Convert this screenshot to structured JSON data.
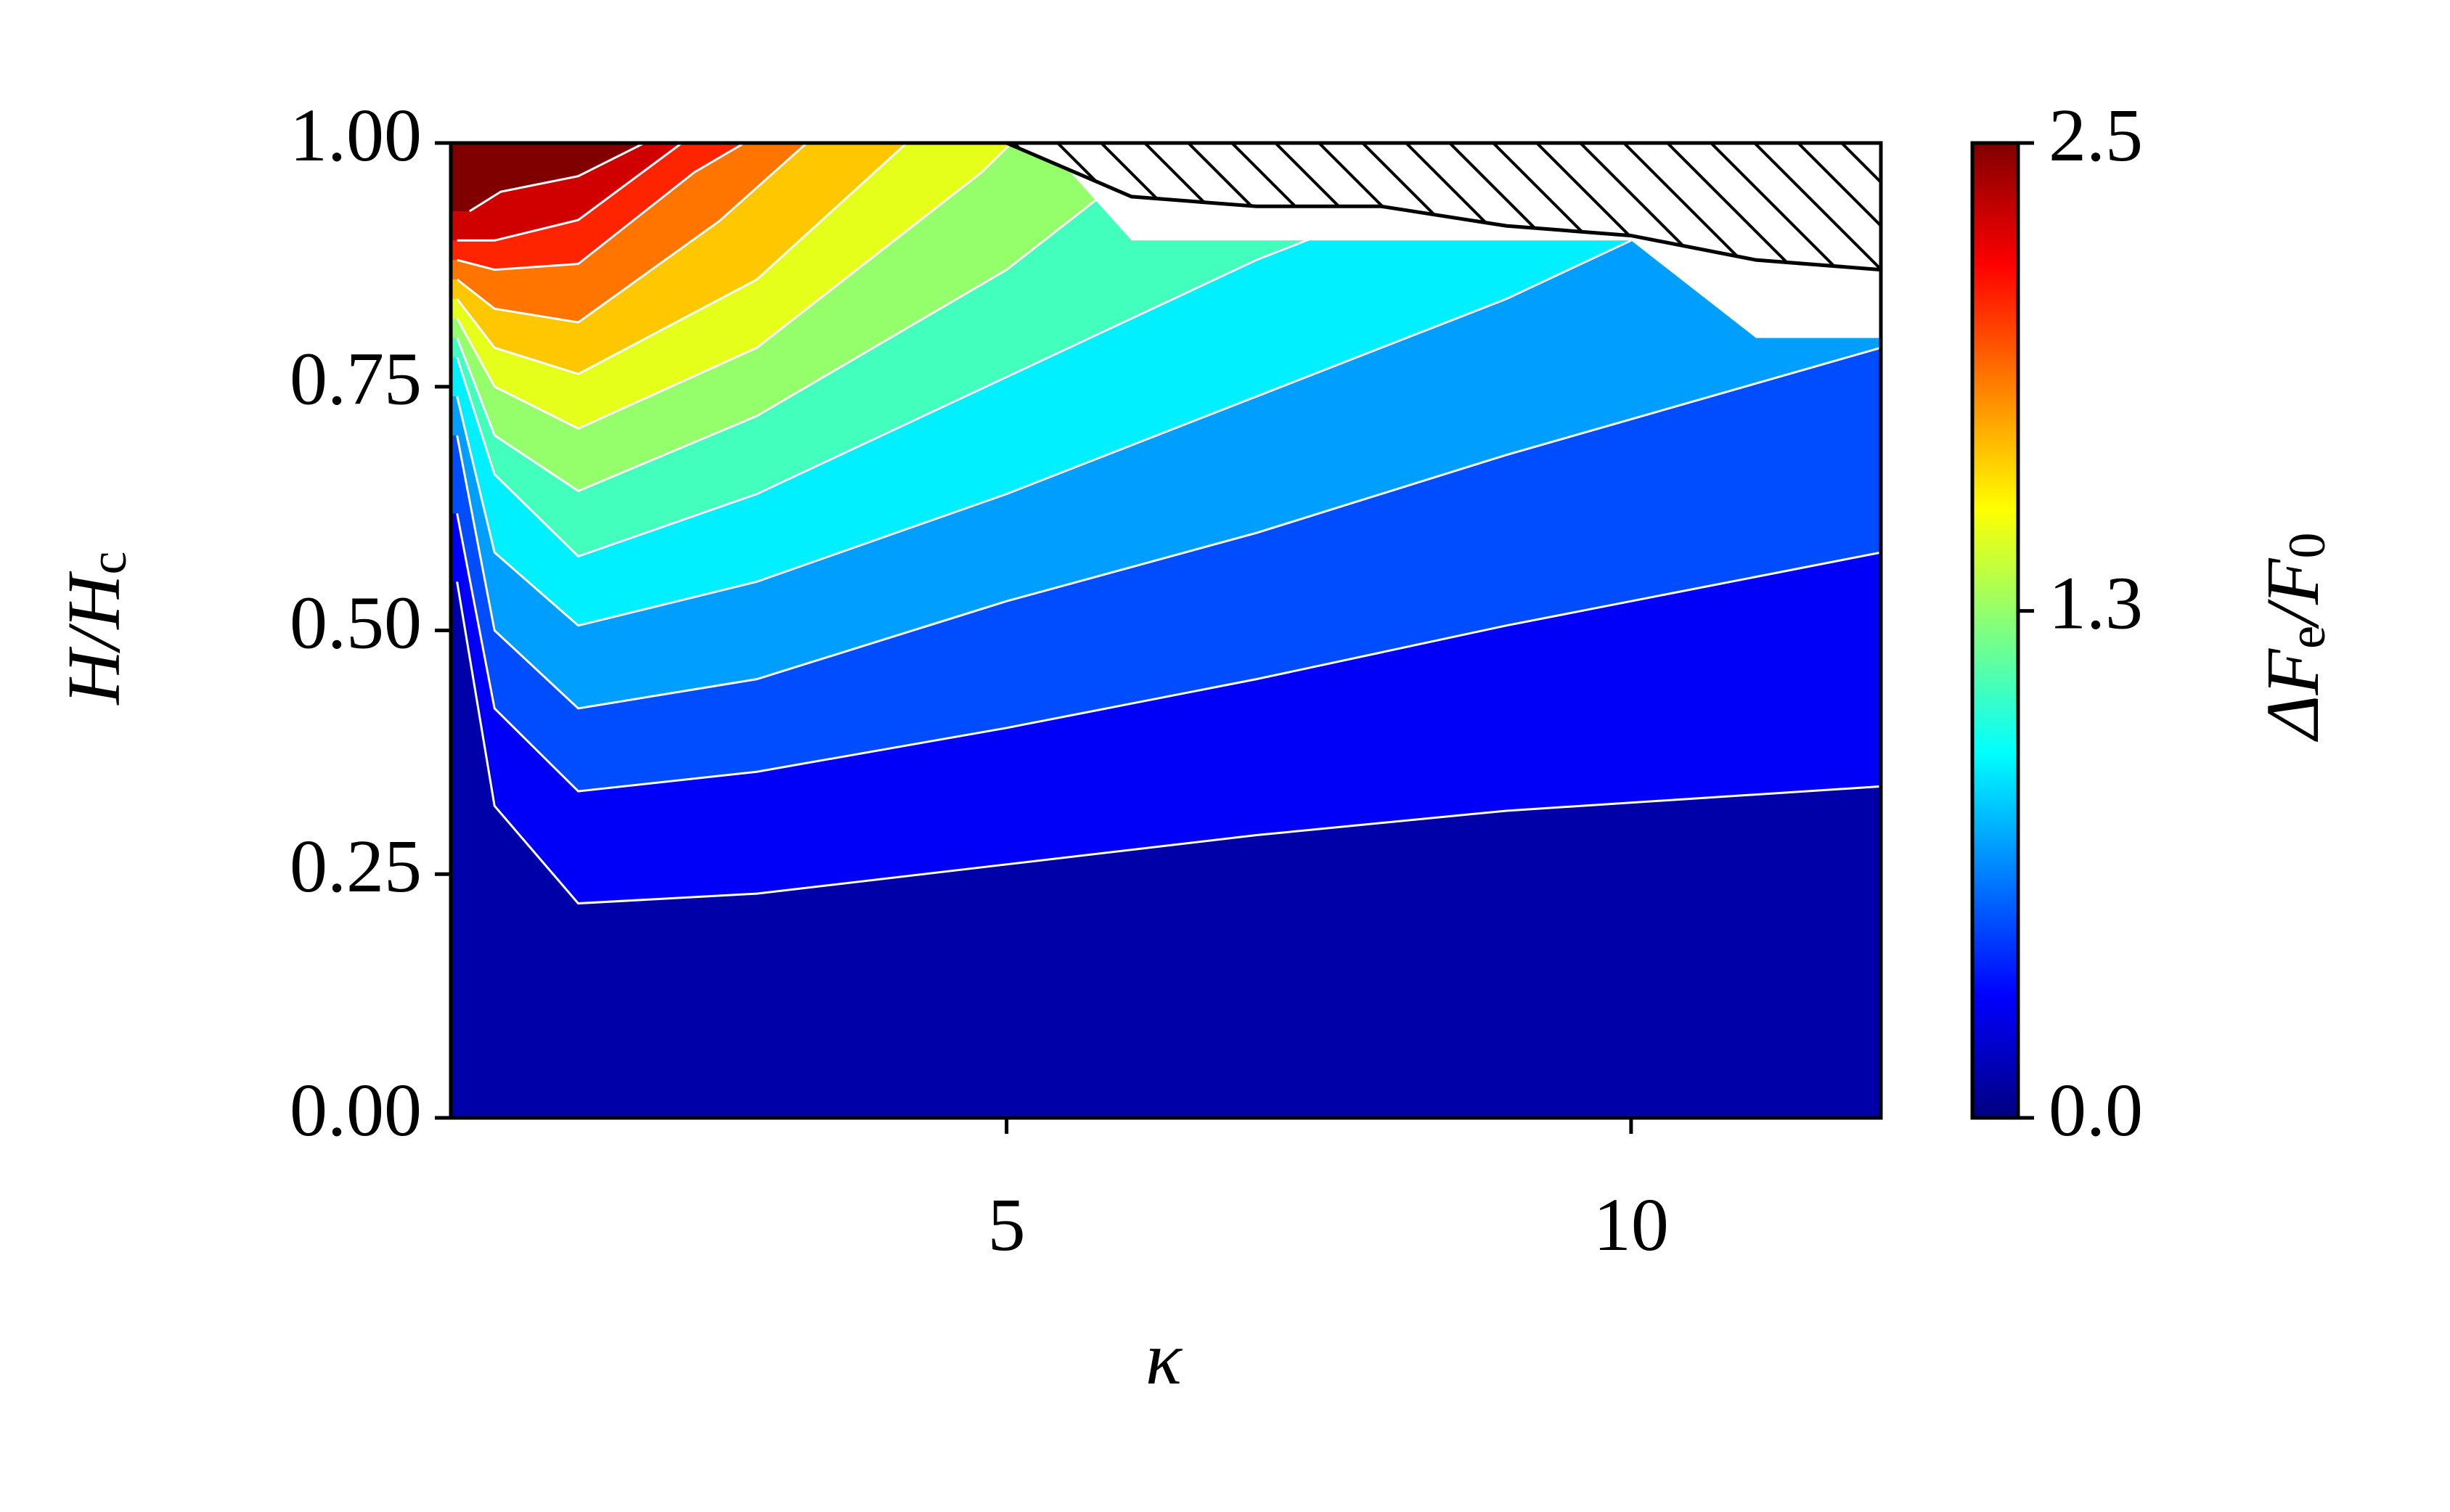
{
  "chart_data": {
    "type": "contour",
    "cmap": "jet",
    "xlabel": "κ",
    "ylabel_parts": [
      "H/H",
      "c"
    ],
    "colorbar_label_parts": [
      "ΔF",
      "e",
      "/F",
      "0"
    ],
    "xlim": [
      0.55,
      12
    ],
    "ylim": [
      0,
      1
    ],
    "xticks": [
      5,
      10
    ],
    "yticks": [
      {
        "value": 0,
        "label": "0.00"
      },
      {
        "value": 0.25,
        "label": "0.25"
      },
      {
        "value": 0.5,
        "label": "0.50"
      },
      {
        "value": 0.75,
        "label": "0.75"
      },
      {
        "value": 1,
        "label": "1.00"
      }
    ],
    "clim": [
      0,
      2.5
    ],
    "cticks": [
      {
        "value": 0,
        "label": "0.0"
      },
      {
        "value": 1.3,
        "label": "1.3"
      },
      {
        "value": 2.5,
        "label": "2.5"
      }
    ],
    "contours": [
      {
        "level": 0.2,
        "x": [
          0.6,
          0.9,
          1.57,
          3,
          5,
          7,
          9,
          12
        ],
        "y": [
          0.55,
          0.32,
          0.22,
          0.23,
          0.26,
          0.29,
          0.315,
          0.34
        ]
      },
      {
        "level": 0.4,
        "x": [
          0.6,
          0.9,
          1.57,
          3,
          5,
          7,
          9,
          12
        ],
        "y": [
          0.62,
          0.42,
          0.335,
          0.355,
          0.4,
          0.45,
          0.505,
          0.58
        ]
      },
      {
        "level": 0.6,
        "x": [
          0.6,
          0.9,
          1.57,
          3,
          5,
          7,
          9,
          12
        ],
        "y": [
          0.7,
          0.5,
          0.42,
          0.45,
          0.53,
          0.6,
          0.68,
          0.79
        ]
      },
      {
        "level": 0.8,
        "x": [
          0.6,
          0.9,
          1.57,
          3,
          5,
          7,
          9,
          10
        ],
        "y": [
          0.74,
          0.58,
          0.505,
          0.55,
          0.64,
          0.74,
          0.84,
          0.9
        ]
      },
      {
        "level": 1.0,
        "x": [
          0.6,
          0.9,
          1.57,
          3,
          5,
          7,
          8
        ],
        "y": [
          0.78,
          0.66,
          0.576,
          0.64,
          0.76,
          0.88,
          0.93
        ]
      },
      {
        "level": 1.2,
        "x": [
          0.6,
          0.9,
          1.57,
          3,
          5,
          6.3
        ],
        "y": [
          0.8,
          0.7,
          0.643,
          0.72,
          0.87,
          1.0
        ]
      },
      {
        "level": 1.4,
        "x": [
          0.6,
          0.9,
          1.57,
          3,
          4.8,
          5.2
        ],
        "y": [
          0.82,
          0.75,
          0.707,
          0.79,
          0.97,
          1.02
        ]
      },
      {
        "level": 1.6,
        "x": [
          0.6,
          0.9,
          1.57,
          3,
          4.2
        ],
        "y": [
          0.84,
          0.79,
          0.763,
          0.86,
          1.0
        ]
      },
      {
        "level": 1.8,
        "x": [
          0.6,
          0.9,
          1.57,
          2.7,
          3.4
        ],
        "y": [
          0.86,
          0.83,
          0.816,
          0.92,
          1.0
        ]
      },
      {
        "level": 2.0,
        "x": [
          0.6,
          0.9,
          1.57,
          2.5,
          2.9
        ],
        "y": [
          0.88,
          0.87,
          0.876,
          0.97,
          1.0
        ]
      },
      {
        "level": 2.2,
        "x": [
          0.6,
          0.9,
          1.57,
          2.4
        ],
        "y": [
          0.9,
          0.9,
          0.921,
          1.0
        ]
      },
      {
        "level": 2.4,
        "x": [
          0.7,
          0.95,
          1.57,
          2.1
        ],
        "y": [
          0.93,
          0.95,
          0.966,
          1.0
        ]
      }
    ],
    "undefined_edge": {
      "x": [
        5.3,
        6,
        10,
        11,
        12
      ],
      "y": [
        1.0,
        0.9,
        0.9,
        0.8,
        0.8
      ]
    },
    "hatched_boundary": {
      "x": [
        5,
        6,
        7,
        8,
        9,
        10,
        11,
        12
      ],
      "y": [
        1.0,
        0.945,
        0.935,
        0.935,
        0.915,
        0.905,
        0.88,
        0.87
      ]
    }
  }
}
